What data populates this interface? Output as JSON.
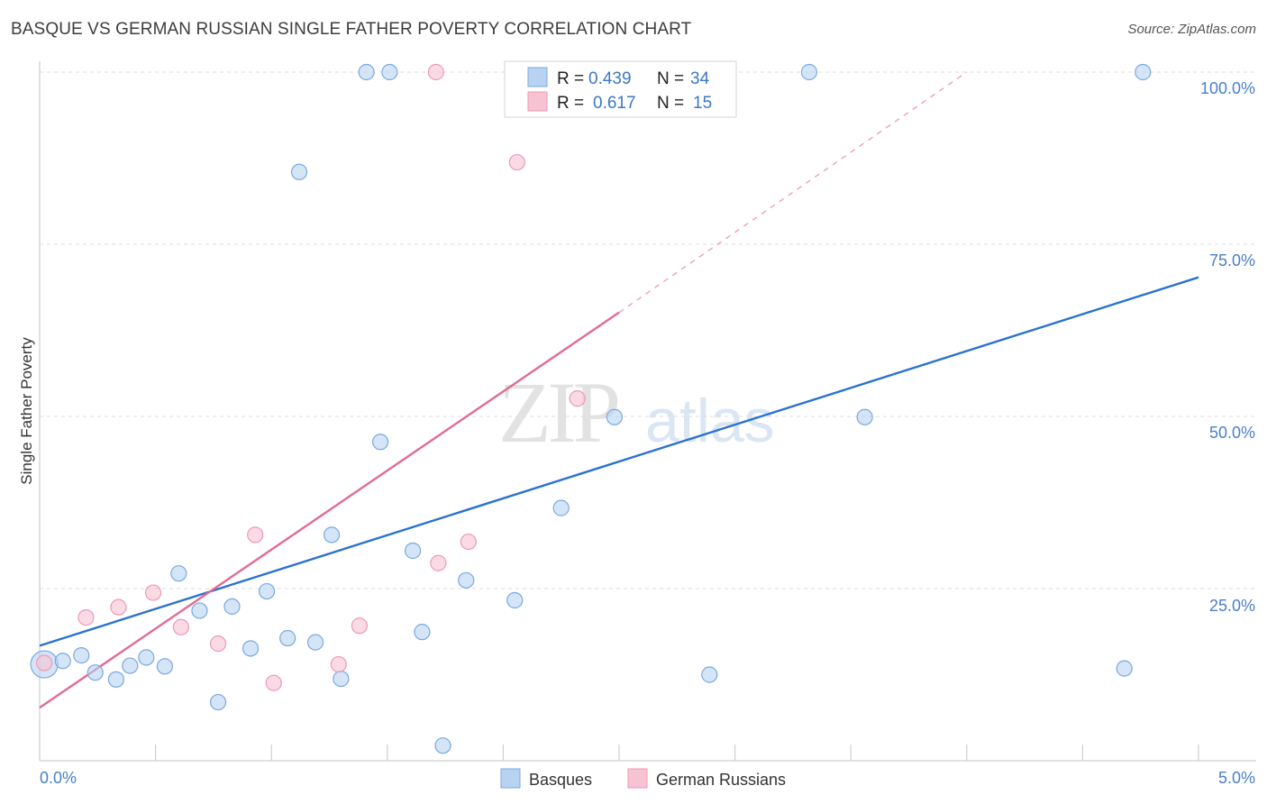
{
  "header": {
    "title": "BASQUE VS GERMAN RUSSIAN SINGLE FATHER POVERTY CORRELATION CHART",
    "source": "Source: ZipAtlas.com"
  },
  "watermark": {
    "zip": "ZIP",
    "atlas": "atlas"
  },
  "colors": {
    "basque_fill": "#b8d3f2",
    "basque_stroke": "#7aa8e0",
    "basque_line": "#2a72d0",
    "german_fill": "#f7c3d3",
    "german_stroke": "#ee99b3",
    "german_line": "#e26a93",
    "tick_text": "#4a7fc9",
    "grid": "#dddddd"
  },
  "legend": {
    "rows": [
      {
        "r_label": "R = ",
        "r_value": "0.439",
        "n_label": "N = ",
        "n_value": "34"
      },
      {
        "r_label": "R = ",
        "r_value": "0.617",
        "n_label": "N = ",
        "n_value": "15"
      }
    ]
  },
  "bottom_legend": [
    "Basques",
    "German Russians"
  ],
  "chart_data": {
    "type": "scatter",
    "title": "BASQUE VS GERMAN RUSSIAN SINGLE FATHER POVERTY CORRELATION CHART",
    "xlabel": "",
    "ylabel": "Single Father Poverty",
    "xlim": [
      0,
      5
    ],
    "ylim": [
      0,
      102
    ],
    "x_tick_labels": [
      "0.0%",
      "5.0%"
    ],
    "y_ticks": [
      25,
      50,
      75,
      100
    ],
    "y_tick_labels": [
      "25.0%",
      "50.0%",
      "75.0%",
      "100.0%"
    ],
    "series": [
      {
        "name": "Basques",
        "R": 0.439,
        "N": 34,
        "points": [
          {
            "x": 0.02,
            "y": 14.0,
            "big": true
          },
          {
            "x": 0.1,
            "y": 14.5
          },
          {
            "x": 0.18,
            "y": 15.3
          },
          {
            "x": 0.24,
            "y": 12.8
          },
          {
            "x": 0.33,
            "y": 11.8
          },
          {
            "x": 0.39,
            "y": 13.8
          },
          {
            "x": 0.46,
            "y": 15.0
          },
          {
            "x": 0.54,
            "y": 13.7
          },
          {
            "x": 0.6,
            "y": 27.2
          },
          {
            "x": 0.69,
            "y": 21.8
          },
          {
            "x": 0.77,
            "y": 8.5
          },
          {
            "x": 0.83,
            "y": 22.4
          },
          {
            "x": 0.91,
            "y": 16.3
          },
          {
            "x": 0.98,
            "y": 24.6
          },
          {
            "x": 1.07,
            "y": 17.8
          },
          {
            "x": 1.12,
            "y": 85.5
          },
          {
            "x": 1.19,
            "y": 17.2
          },
          {
            "x": 1.26,
            "y": 32.8
          },
          {
            "x": 1.3,
            "y": 11.9
          },
          {
            "x": 1.41,
            "y": 100.0
          },
          {
            "x": 1.47,
            "y": 46.3
          },
          {
            "x": 1.51,
            "y": 100.0
          },
          {
            "x": 1.61,
            "y": 30.5
          },
          {
            "x": 1.65,
            "y": 18.7
          },
          {
            "x": 1.74,
            "y": 2.2
          },
          {
            "x": 1.84,
            "y": 26.2
          },
          {
            "x": 2.05,
            "y": 23.3
          },
          {
            "x": 2.25,
            "y": 36.7
          },
          {
            "x": 2.48,
            "y": 49.9
          },
          {
            "x": 2.89,
            "y": 12.5
          },
          {
            "x": 3.32,
            "y": 100.0
          },
          {
            "x": 3.56,
            "y": 49.9
          },
          {
            "x": 4.68,
            "y": 13.4
          },
          {
            "x": 4.76,
            "y": 100.0
          }
        ],
        "trend": {
          "x0": 0.0,
          "y0": 16.7,
          "x1": 5.0,
          "y1": 70.2
        }
      },
      {
        "name": "German Russians",
        "R": 0.617,
        "N": 15,
        "points": [
          {
            "x": 0.02,
            "y": 14.2
          },
          {
            "x": 0.2,
            "y": 20.8
          },
          {
            "x": 0.34,
            "y": 22.3
          },
          {
            "x": 0.49,
            "y": 24.4
          },
          {
            "x": 0.61,
            "y": 19.4
          },
          {
            "x": 0.77,
            "y": 17.0
          },
          {
            "x": 0.93,
            "y": 32.8
          },
          {
            "x": 1.01,
            "y": 11.3
          },
          {
            "x": 1.29,
            "y": 14.0
          },
          {
            "x": 1.38,
            "y": 19.6
          },
          {
            "x": 1.71,
            "y": 100.0
          },
          {
            "x": 1.72,
            "y": 28.7
          },
          {
            "x": 1.85,
            "y": 31.8
          },
          {
            "x": 2.06,
            "y": 86.9
          },
          {
            "x": 2.32,
            "y": 52.6
          }
        ],
        "trend": {
          "x0": 0.0,
          "y0": 7.7,
          "x1": 2.5,
          "y1": 65.1
        },
        "trend_dashed": {
          "x0": 2.5,
          "y0": 65.1,
          "x1": 4.0,
          "y1": 100.0
        }
      }
    ]
  }
}
